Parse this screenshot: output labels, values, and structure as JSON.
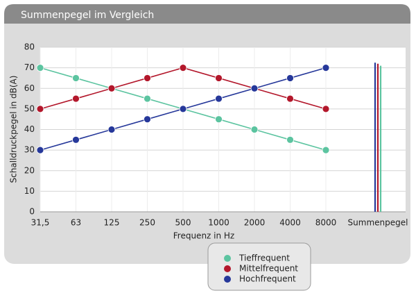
{
  "chart_data": {
    "type": "line",
    "title": "Summenpegel im Vergleich",
    "x_label": "Frequenz in Hz",
    "y_label": "Schalldruckpegel in dB(A)",
    "categories": [
      "31,5",
      "63",
      "125",
      "250",
      "500",
      "1000",
      "2000",
      "4000",
      "8000"
    ],
    "total_label": "Summenpegel",
    "series": [
      {
        "name": "Tieffrequent",
        "color": "#5cc4a0",
        "values": [
          70,
          65,
          60,
          55,
          50,
          45,
          40,
          35,
          30
        ],
        "total": 71
      },
      {
        "name": "Mittelfrequent",
        "color": "#b3172b",
        "values": [
          50,
          55,
          60,
          65,
          70,
          65,
          60,
          55,
          50
        ],
        "total": 72
      },
      {
        "name": "Hochfrequent",
        "color": "#26389a",
        "values": [
          30,
          35,
          40,
          45,
          50,
          55,
          60,
          65,
          70
        ],
        "total": 72.5
      }
    ],
    "ylim": [
      0,
      80
    ],
    "yticks": [
      0,
      10,
      20,
      30,
      40,
      50,
      60,
      70,
      80
    ],
    "grid": true
  }
}
